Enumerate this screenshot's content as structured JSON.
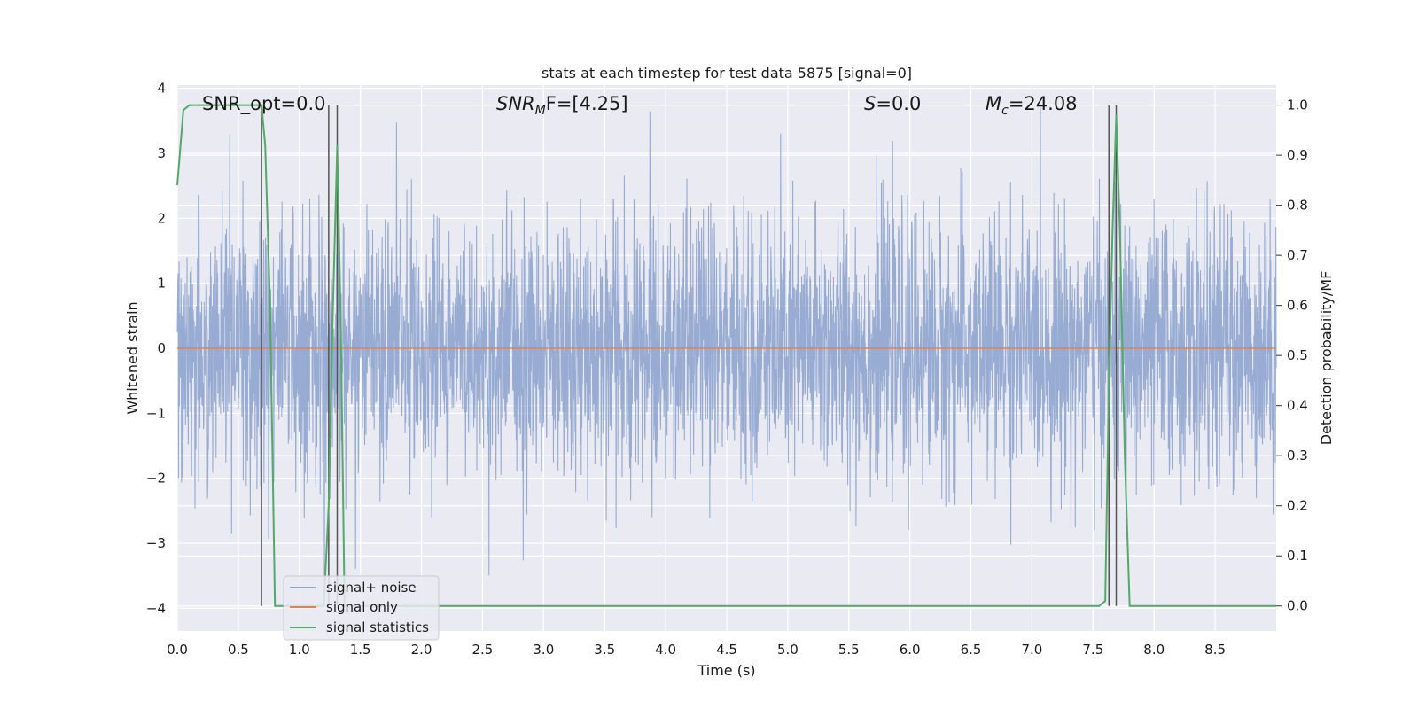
{
  "chart_data": {
    "type": "line",
    "title": "stats at each timestep for test data 5875 [signal=0]",
    "xlabel": "Time (s)",
    "ylabel": "Whitened strain",
    "y2label": "Detection probability/MF",
    "xlim": [
      0.0,
      9.0
    ],
    "ylim": [
      -4.35,
      4.05
    ],
    "y2lim": [
      -0.05,
      1.04
    ],
    "grid": true,
    "legend_position": "lower-left",
    "x_ticks": [
      "0.0",
      "0.5",
      "1.0",
      "1.5",
      "2.0",
      "2.5",
      "3.0",
      "3.5",
      "4.0",
      "4.5",
      "5.0",
      "5.5",
      "6.0",
      "6.5",
      "7.0",
      "7.5",
      "8.0",
      "8.5"
    ],
    "y_ticks": [
      "4",
      "3",
      "2",
      "1",
      "0",
      "−1",
      "−2",
      "−3",
      "−4"
    ],
    "y2_ticks": [
      "1.0",
      "0.9",
      "0.8",
      "0.7",
      "0.6",
      "0.5",
      "0.4",
      "0.3",
      "0.2",
      "0.1",
      "0.0"
    ],
    "annotations": {
      "snr_opt": "SNR_opt=0.0",
      "snr_mf_main": "SNR",
      "snr_mf_sub": "M",
      "snr_mf_rest": "F=[4.25]",
      "s_main": "S",
      "s_rest": "=0.0",
      "mc_main": "M",
      "mc_sub": "c",
      "mc_rest": "=24.08"
    },
    "series": [
      {
        "name": "signal+ noise",
        "color": "#8fa5cf",
        "description": "whitened strain noise, roughly uniform amplitude ~±2 with spikes to ±3.5"
      },
      {
        "name": "signal only",
        "color": "#dd8452",
        "values_constant": 0.0
      },
      {
        "name": "signal statistics",
        "color": "#55a868",
        "axis": "y2",
        "x": [
          0.0,
          0.05,
          0.1,
          0.2,
          0.4,
          0.6,
          0.69,
          0.72,
          0.76,
          0.8,
          0.85,
          1.0,
          1.2,
          1.24,
          1.27,
          1.31,
          1.34,
          1.37,
          1.45,
          3.0,
          5.0,
          7.0,
          7.55,
          7.6,
          7.63,
          7.66,
          7.69,
          7.72,
          7.76,
          7.8,
          8.0,
          9.0
        ],
        "y": [
          0.84,
          0.99,
          1.0,
          1.0,
          1.0,
          1.0,
          1.0,
          0.92,
          0.6,
          0.0,
          0.0,
          0.0,
          0.0,
          0.2,
          0.55,
          0.92,
          0.55,
          0.0,
          0.0,
          0.0,
          0.0,
          0.0,
          0.0,
          0.01,
          0.45,
          0.75,
          0.98,
          0.75,
          0.3,
          0.0,
          0.0,
          0.0
        ]
      }
    ],
    "vertical_lines_x": [
      0.69,
      1.24,
      1.31,
      7.63,
      7.69
    ]
  }
}
